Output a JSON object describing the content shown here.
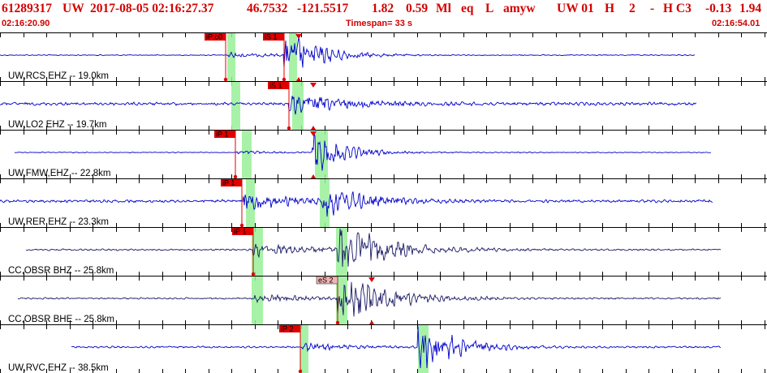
{
  "header": {
    "event_id": "61289317",
    "network": "UW",
    "origin_time": "2017-08-05 02:16:27.37",
    "latitude": "46.7532",
    "longitude": "-121.5517",
    "depth": "1.82",
    "magnitude": "0.59",
    "mag_type": "Ml",
    "event_type": "eq",
    "event_flag": "L",
    "analyst": "amyw",
    "source": "UW 01",
    "field_h1": "H",
    "field_2": "2",
    "field_dash": "-",
    "field_hc3": "H C3",
    "value_a": "-0.13",
    "value_b": "1.94",
    "start_time": "02:16:20.90",
    "timespan": "Timespan=  33 s",
    "end_time": "02:16:54.01"
  },
  "colors": {
    "header_text": "#d40000",
    "trace_blue": "#0000cc",
    "trace_navy": "#1a1a66",
    "pick_marker": "#e00000",
    "pick_light": "#f3b3b3",
    "window_green": "#99f099"
  },
  "traces": [
    {
      "label": "UW,RCS,EHZ -- 19.0km",
      "color": "blue",
      "noise": 0.07,
      "x_start": 0,
      "x_end": 856,
      "events": [
        [
          350,
          4.0,
          0.65
        ],
        [
          282,
          0.4,
          0.9
        ]
      ],
      "picks": [
        {
          "label": "iP:c0",
          "x": 278,
          "style": "red"
        },
        {
          "label": "iS 1",
          "x": 350,
          "style": "red"
        }
      ],
      "windows": [
        [
          280,
          290
        ],
        [
          356,
          366
        ]
      ],
      "tri": 368
    },
    {
      "label": "UW,LO2 EHZ -- 19.7km",
      "color": "blue",
      "noise": 0.22,
      "x_start": 0,
      "x_end": 858,
      "events": [
        [
          356,
          1.4,
          1.2
        ]
      ],
      "picks": [
        {
          "label": "iS 1",
          "x": 356,
          "style": "red"
        }
      ],
      "windows": [
        [
          285,
          296
        ],
        [
          360,
          374
        ]
      ],
      "tri": 386
    },
    {
      "label": "UW,FMW,EHZ -- 22.8km",
      "color": "blue",
      "noise": 0.06,
      "x_start": 18,
      "x_end": 876,
      "events": [
        [
          385,
          3.6,
          0.6
        ],
        [
          292,
          0.25,
          0.8
        ]
      ],
      "picks": [
        {
          "label": "iP 1",
          "x": 290,
          "style": "red"
        }
      ],
      "windows": [
        [
          298,
          310
        ],
        [
          388,
          404
        ]
      ],
      "tri": 386
    },
    {
      "label": "UW,RER,EHZ -- 23.3km",
      "color": "blue",
      "noise": 0.2,
      "x_start": 0,
      "x_end": 878,
      "events": [
        [
          300,
          1.6,
          0.9
        ],
        [
          397,
          2.2,
          0.8
        ]
      ],
      "picks": [
        {
          "label": "iP 1",
          "x": 298,
          "style": "red"
        }
      ],
      "windows": [
        [
          303,
          314
        ],
        [
          394,
          406
        ]
      ],
      "tri": null
    },
    {
      "label": "CC,OBSR BHZ -- 25.8km",
      "color": "navy",
      "noise": 0.12,
      "x_start": 32,
      "x_end": 888,
      "events": [
        [
          312,
          0.9,
          1.3
        ],
        [
          416,
          4.0,
          0.9
        ]
      ],
      "picks": [
        {
          "label": "iP 1",
          "x": 312,
          "style": "red"
        }
      ],
      "windows": [
        [
          310,
          324
        ],
        [
          414,
          428
        ]
      ],
      "tri": null
    },
    {
      "label": "CC,OBSR BHE -- 25.8km",
      "color": "navy",
      "noise": 0.12,
      "x_start": 22,
      "x_end": 888,
      "events": [
        [
          314,
          0.5,
          1.3
        ],
        [
          416,
          3.8,
          0.9
        ]
      ],
      "picks": [
        {
          "label": "eS 2",
          "x": 416,
          "style": "light"
        }
      ],
      "windows": [
        [
          310,
          324
        ],
        [
          414,
          428
        ]
      ],
      "tri": 458
    },
    {
      "label": "UW,RVC,EHZ -- 38.5km",
      "color": "blue",
      "noise": 0.12,
      "x_start": 88,
      "x_end": 888,
      "events": [
        [
          372,
          0.6,
          0.8
        ],
        [
          515,
          4.2,
          0.7
        ]
      ],
      "picks": [
        {
          "label": "iP 2",
          "x": 370,
          "style": "red"
        }
      ],
      "windows": [
        [
          370,
          380
        ],
        [
          515,
          528
        ]
      ],
      "tri": null
    }
  ]
}
